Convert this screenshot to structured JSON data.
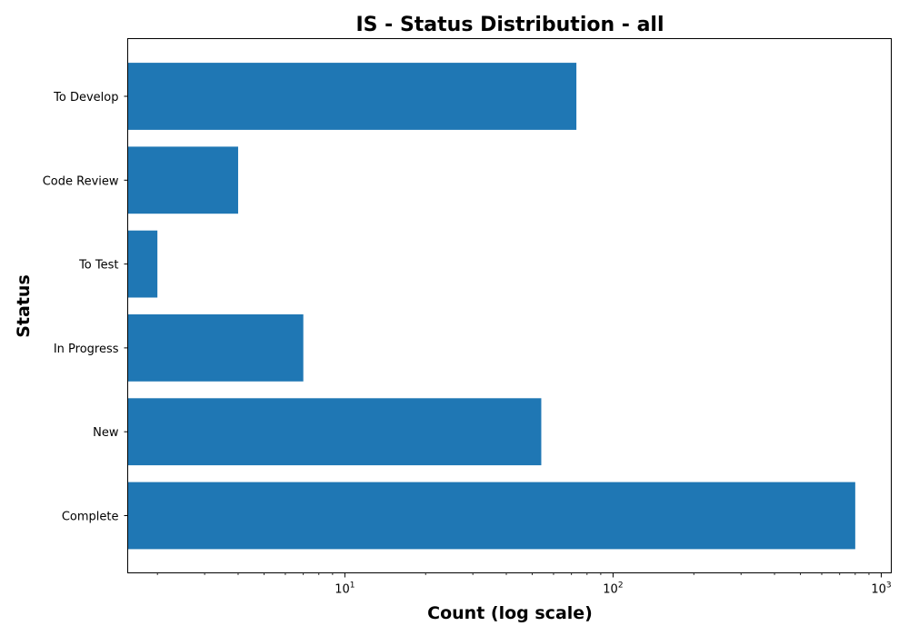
{
  "chart_data": {
    "type": "bar",
    "orientation": "horizontal",
    "title": "IS - Status Distribution - all",
    "xlabel": "Count (log scale)",
    "ylabel": "Status",
    "x_scale": "log",
    "xlim": [
      1.55,
      1090
    ],
    "x_ticks": [
      {
        "value": 10,
        "base": "10",
        "exp": "1"
      },
      {
        "value": 100,
        "base": "10",
        "exp": "2"
      },
      {
        "value": 1000,
        "base": "10",
        "exp": "3"
      }
    ],
    "categories": [
      "Complete",
      "New",
      "In Progress",
      "To Test",
      "Code Review",
      "To Develop"
    ],
    "values": [
      800,
      54,
      7,
      2,
      4,
      73
    ],
    "color": "#1f77b4",
    "grid": false,
    "legend": "none"
  }
}
